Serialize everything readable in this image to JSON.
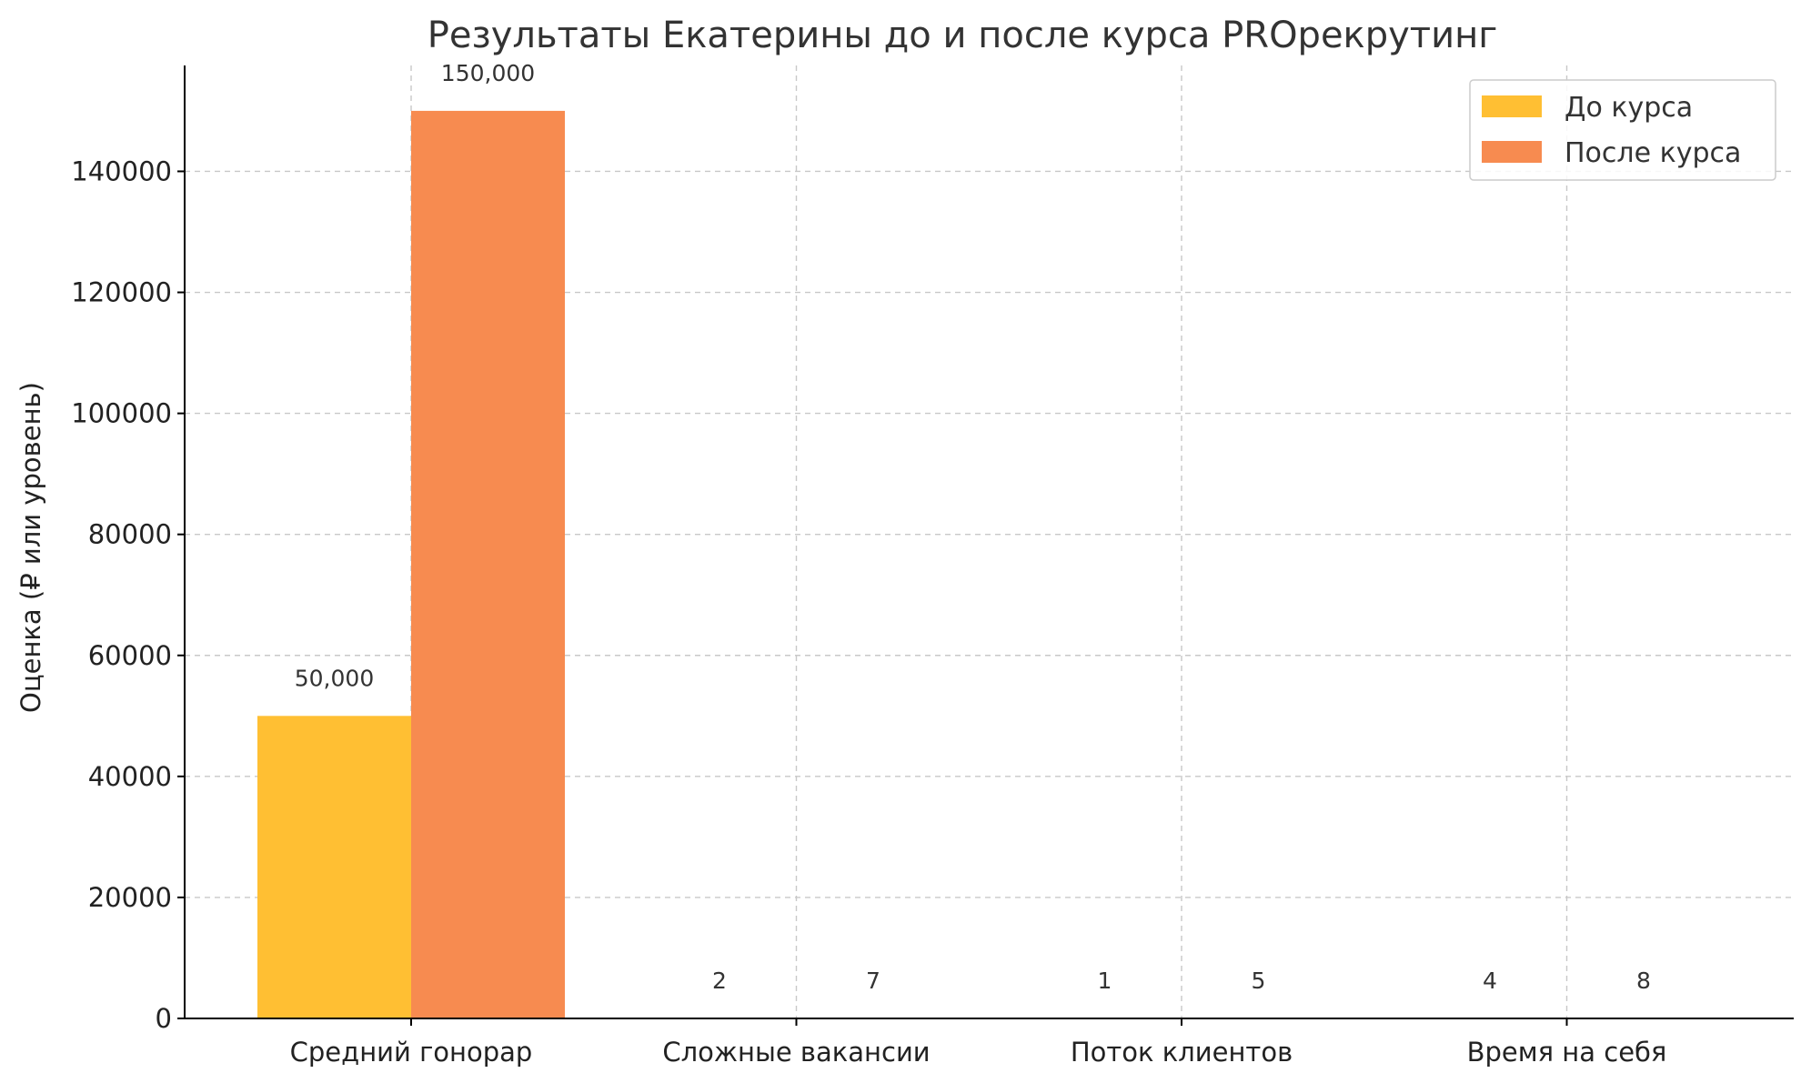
{
  "chart_data": {
    "type": "bar",
    "title": "Результаты Екатерины до и после курса PROрекрутинг",
    "xlabel": "",
    "ylabel": "Оценка (₽ или уровень)",
    "categories": [
      "Средний гонорар",
      "Сложные вакансии",
      "Поток клиентов",
      "Время на себя"
    ],
    "series": [
      {
        "name": "До курса",
        "color": "#FFBF33",
        "values": [
          50000,
          2,
          1,
          4
        ],
        "labels": [
          "50,000",
          "2",
          "1",
          "4"
        ]
      },
      {
        "name": "После курса",
        "color": "#F78B50",
        "values": [
          150000,
          7,
          5,
          8
        ],
        "labels": [
          "150,000",
          "7",
          "5",
          "8"
        ]
      }
    ],
    "ylim": [
      0,
      157500
    ],
    "yticks": [
      0,
      20000,
      40000,
      60000,
      80000,
      100000,
      120000,
      140000
    ],
    "grid": true,
    "legend_position": "top-right"
  }
}
